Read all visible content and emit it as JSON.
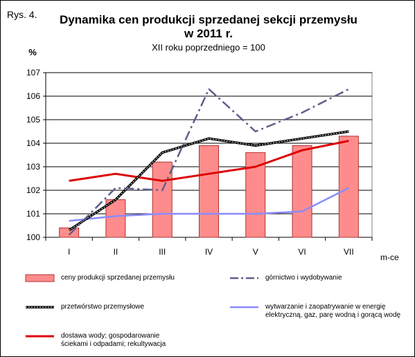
{
  "figure_label": "Rys. 4.",
  "title_line1": "Dynamika cen produkcji sprzedanej sekcji przemysłu",
  "title_line2": "w 2011 r.",
  "subtitle": "XII roku poprzedniego = 100",
  "colors": {
    "bar_fill": "#ff8c8c",
    "bar_stroke": "#b03030",
    "gornictwo": "#5e5e8c",
    "przetworstwo": "#000000",
    "wytwarzanie": "#8a8aff",
    "dostawa": "#dd0000"
  },
  "chart_data": {
    "type": "bar",
    "ylabel": "%",
    "xlabel": "m-ce",
    "ylim": [
      100,
      107
    ],
    "yticks": [
      100,
      101,
      102,
      103,
      104,
      105,
      106,
      107
    ],
    "grid": true,
    "legend_position": "bottom",
    "categories": [
      "I",
      "II",
      "III",
      "IV",
      "V",
      "VI",
      "VII"
    ],
    "series": [
      {
        "name": "ceny produkcji sprzedanej przemysłu",
        "type": "bar",
        "values": [
          100.4,
          101.6,
          103.2,
          103.9,
          103.6,
          103.9,
          104.3
        ]
      },
      {
        "name": "górnictwo i wydobywanie",
        "type": "line",
        "style": "dash-dot",
        "values": [
          100.1,
          102.1,
          102.0,
          106.3,
          104.5,
          105.3,
          106.3
        ]
      },
      {
        "name": "przetwórstwo przemysłowe",
        "type": "line",
        "style": "solid-black",
        "values": [
          100.3,
          101.6,
          103.6,
          104.2,
          103.9,
          104.2,
          104.5
        ]
      },
      {
        "name": "wytwarzanie  i zaopatrywanie  w energię elektryczną, gaz, parę wodną i gorącą wodę",
        "type": "line",
        "style": "solid",
        "values": [
          100.7,
          100.9,
          101.0,
          101.0,
          101.0,
          101.1,
          102.1
        ]
      },
      {
        "name": "dostawa wody; gospodarowanie ściekami i odpadami; rekultywacja",
        "type": "line",
        "style": "solid",
        "values": [
          102.4,
          102.7,
          102.4,
          102.7,
          103.0,
          103.7,
          104.1
        ]
      }
    ]
  },
  "legend": {
    "bars": "ceny produkcji sprzedanej przemysłu",
    "gornictwo": "górnictwo i wydobywanie",
    "przetworstwo": "przetwórstwo przemysłowe",
    "wytwarzanie_line1": "wytwarzanie  i zaopatrywanie  w energię",
    "wytwarzanie_line2": "elektryczną, gaz, parę wodną i gorącą wodę",
    "dostawa_line1": "dostawa wody; gospodarowanie",
    "dostawa_line2": "ściekami i odpadami; rekultywacja"
  }
}
